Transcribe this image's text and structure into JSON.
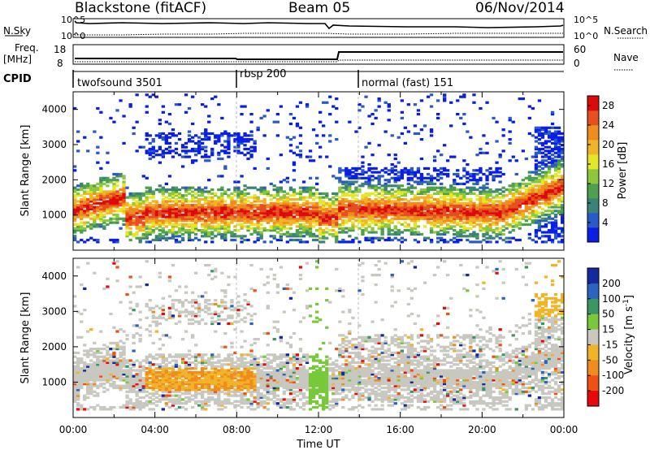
{
  "header": {
    "radar": "Blackstone (fitACF)",
    "beam": "Beam 05",
    "date": "06/Nov/2014"
  },
  "noise_panel": {
    "left_label": "N.Sky",
    "right_label": "N.Search",
    "tick_high": "10^5",
    "tick_low": "10^0"
  },
  "freq_panel": {
    "left_label": "Freq.",
    "left_unit": "[MHz]",
    "right_label": "Nave",
    "left_ticks": [
      "18",
      "8"
    ],
    "right_ticks": [
      "60",
      "0"
    ]
  },
  "cpid_panel": {
    "label": "CPID",
    "segments": [
      {
        "name": "twofsound 3501",
        "start_hour": 0
      },
      {
        "name": "rbsp 200",
        "start_hour": 8
      },
      {
        "name": "normal (fast) 151",
        "start_hour": 13.9
      }
    ]
  },
  "chart_data": [
    {
      "type": "heatmap",
      "title": "",
      "xlabel": "",
      "ylabel": "Slant Range [km]",
      "xlim": [
        0,
        24
      ],
      "ylim": [
        0,
        4500
      ],
      "yticks": [
        1000,
        2000,
        3000,
        4000
      ],
      "colorbar": {
        "label": "Power [dB]",
        "ticks": [
          4,
          8,
          12,
          16,
          20,
          24,
          28
        ],
        "range": [
          0,
          30
        ],
        "colors": [
          "#0a1ee6",
          "#2a5ac8",
          "#3c8278",
          "#4ea050",
          "#8cc83c",
          "#e6e628",
          "#f0b428",
          "#f08c1e",
          "#e6501e",
          "#dc0a0a"
        ]
      }
    },
    {
      "type": "heatmap",
      "title": "",
      "xlabel": "Time UT",
      "ylabel": "Slant Range [km]",
      "xlim": [
        0,
        24
      ],
      "ylim": [
        0,
        4500
      ],
      "yticks": [
        1000,
        2000,
        3000,
        4000
      ],
      "xticks": [
        "00:00",
        "04:00",
        "08:00",
        "12:00",
        "16:00",
        "20:00",
        "00:00"
      ],
      "colorbar": {
        "label": "Velocity [m s^-1]",
        "ticks": [
          200,
          100,
          50,
          15,
          -15,
          -50,
          -100,
          -200
        ],
        "colors": [
          "#1428a0",
          "#2a64c0",
          "#3c9664",
          "#78c83c",
          "#c8c8c0",
          "#f0b428",
          "#f08c1e",
          "#f05014",
          "#e60a0a"
        ]
      }
    }
  ]
}
